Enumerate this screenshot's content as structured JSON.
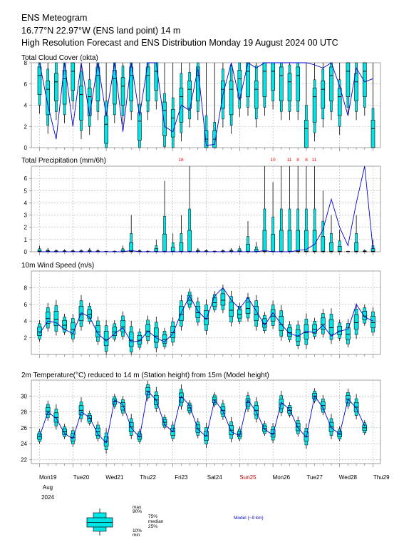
{
  "header": {
    "line1": "ENS Meteogram",
    "line2": "16.77°N 22.97°W (ENS land point) 14 m",
    "line3": "High Resolution Forecast and ENS Distribution Monday 19 August 2024 00 UTC"
  },
  "x_axis": {
    "days": [
      "Mon19",
      "Tue20",
      "Wed21",
      "Thu22",
      "Fri23",
      "Sat24",
      "Sun25",
      "Mon26",
      "Tue27",
      "Wed28",
      "Thu29"
    ],
    "weekend_color": "#cc0000",
    "month_label": "Aug",
    "year_label": "2024"
  },
  "colors": {
    "box": "#00e5e5",
    "hres": "#0000cc",
    "grid": "#b0b0b0",
    "extreme": "#ff0000"
  },
  "legend": {
    "max": "max",
    "p90": "90%",
    "p75": "75%",
    "median": "median",
    "p25": "25%",
    "p10": "10%",
    "min": "min",
    "model": "Model (~9 km)"
  },
  "chart_data": [
    {
      "type": "box",
      "title": "Total Cloud Cover (okta)",
      "ylim": [
        0,
        8
      ],
      "yticks": [
        0,
        2,
        4,
        6,
        8
      ],
      "series": [
        {
          "name": "ENS median",
          "values": [
            6.8,
            5.5,
            6.2,
            6.5,
            7.2,
            5.0,
            4.8,
            6.8,
            2.2,
            6.5,
            5.8,
            6.8,
            2.5,
            6.8,
            7.2,
            3.5,
            2.8,
            4.8,
            5.5,
            6.8,
            0.8,
            0.8,
            5.5,
            5.5,
            6.5,
            7.2,
            5.5,
            7.2,
            7.2,
            6.8,
            6.2,
            6.8,
            1.8,
            4.8,
            5.5,
            6.8,
            4.8,
            7.2,
            6.2,
            7.2,
            1.8
          ]
        },
        {
          "name": "HRES",
          "values": [
            8,
            4,
            0.8,
            8,
            2,
            8,
            3,
            8,
            3,
            8,
            1.5,
            8,
            3,
            8,
            8,
            2,
            1.5,
            4,
            3.5,
            7.5,
            0.2,
            0.3,
            5,
            8,
            4.5,
            8,
            7.5,
            8,
            8,
            8,
            8,
            8,
            8,
            7.8,
            7.5,
            8,
            5.8,
            3,
            7.5,
            6.2,
            6.5
          ]
        }
      ]
    },
    {
      "type": "box",
      "title": "Total Precipitation (mm/6h)",
      "ylim": [
        0,
        7
      ],
      "yticks": [
        0,
        1,
        2,
        3,
        4,
        5,
        6
      ],
      "off_scale_labels": [
        "18",
        "10",
        "11",
        "8",
        "8",
        "11"
      ],
      "series": [
        {
          "name": "ENS max",
          "values": [
            0.5,
            0.3,
            0.2,
            0.2,
            0.2,
            0.2,
            0.3,
            0.2,
            0,
            0.1,
            0.5,
            3,
            0.2,
            0.1,
            1,
            5.8,
            1.5,
            3,
            7,
            0.3,
            0.2,
            0.1,
            0.2,
            0.3,
            0.5,
            2.5,
            0.8,
            7,
            5.7,
            7,
            7,
            7,
            7,
            7,
            5,
            3,
            1.8,
            0,
            3,
            0.2,
            1
          ]
        },
        {
          "name": "HRES",
          "values": [
            0,
            0,
            0,
            0,
            0,
            0,
            0,
            0,
            0,
            0,
            0,
            0.1,
            0,
            0,
            0,
            0,
            0,
            0,
            0,
            0,
            0,
            0,
            0,
            0,
            0,
            0,
            0,
            0.1,
            0,
            0,
            0,
            0.1,
            0.2,
            0.6,
            1.8,
            4.3,
            2,
            0.5,
            4,
            7.0,
            0.2
          ]
        }
      ]
    },
    {
      "type": "box",
      "title": "10m Wind Speed (m/s)",
      "ylim": [
        0,
        10
      ],
      "yticks": [
        2,
        4,
        6,
        8
      ],
      "series": [
        {
          "name": "ENS median",
          "values": [
            2.7,
            4.3,
            4.2,
            3.5,
            3.0,
            4.8,
            4.8,
            2.7,
            1.8,
            2.7,
            3.3,
            1.7,
            1.7,
            2.8,
            2.2,
            1.8,
            2.6,
            4.8,
            6.5,
            5.0,
            4.3,
            6.2,
            6.5,
            5.3,
            4.8,
            5.5,
            4.8,
            3.7,
            4.6,
            3.6,
            2.6,
            2.2,
            2.6,
            3.0,
            3.6,
            3.2,
            2.8,
            2.4,
            3.8,
            4.6,
            3.8
          ]
        },
        {
          "name": "HRES",
          "values": [
            2.5,
            4,
            3.8,
            3,
            2.5,
            5,
            4.5,
            2.5,
            1.6,
            2.5,
            3.2,
            1.5,
            1.6,
            2.8,
            2,
            1.5,
            2.5,
            5,
            7,
            5.2,
            4.2,
            7,
            8,
            6.5,
            5.5,
            6.8,
            5.2,
            3.5,
            5,
            3.6,
            2.5,
            2.2,
            2.8,
            2.6,
            3.5,
            2.2,
            2.8,
            3,
            6,
            4.5,
            4
          ]
        }
      ]
    },
    {
      "type": "box",
      "title": "2m Temperature(°C) reduced to 14 m (Station height) from 15m (Model height)",
      "ylim": [
        21.5,
        32
      ],
      "yticks": [
        22,
        24,
        26,
        28,
        30
      ],
      "series": [
        {
          "name": "ENS median",
          "values": [
            24.9,
            28.1,
            27.3,
            25.5,
            24.8,
            28.2,
            27.2,
            25.5,
            24.3,
            29.3,
            28.7,
            26.1,
            24.9,
            30.6,
            29.5,
            26.7,
            25.5,
            29.8,
            28.5,
            25.9,
            25.0,
            29.5,
            28.2,
            25.7,
            25.2,
            29.2,
            28.2,
            25.9,
            25.3,
            29.0,
            28.2,
            26.1,
            24.9,
            30.0,
            28.8,
            26.1,
            25.2,
            29.6,
            28.6,
            26.0
          ]
        },
        {
          "name": "HRES",
          "values": [
            24.9,
            28,
            27.2,
            25.3,
            24.6,
            28,
            27.3,
            25.2,
            24.1,
            29.5,
            28.9,
            26,
            24.8,
            30.6,
            29.5,
            26.4,
            25.5,
            30,
            28.8,
            25.8,
            24.9,
            29.5,
            28.1,
            25.5,
            25,
            29.5,
            28,
            25.8,
            25.1,
            29.2,
            28.3,
            26,
            24.8,
            30,
            28.5,
            26,
            25.2,
            29.6,
            28.5,
            26.2
          ]
        }
      ]
    }
  ]
}
